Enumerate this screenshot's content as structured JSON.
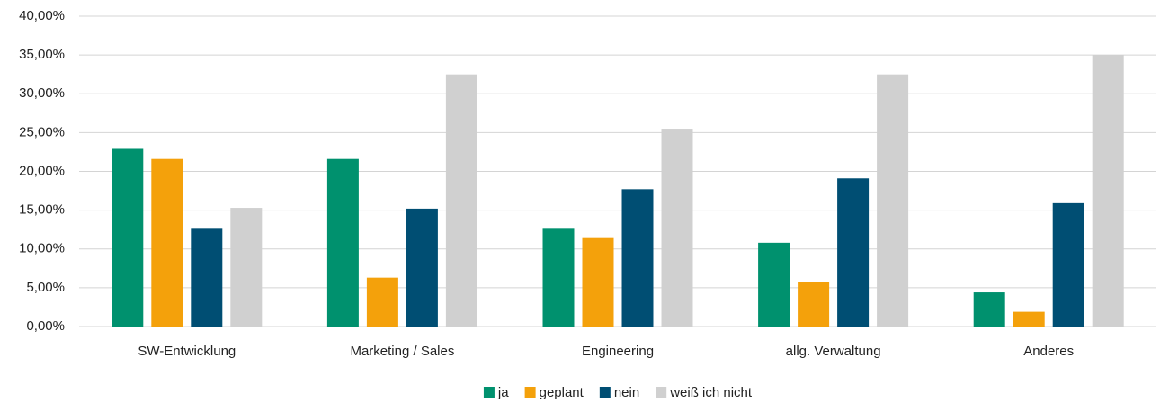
{
  "chart_data": {
    "type": "bar",
    "categories": [
      "SW-Entwicklung",
      "Marketing / Sales",
      "Engineering",
      "allg. Verwaltung",
      "Anderes"
    ],
    "series": [
      {
        "name": "ja",
        "color": "#00916e",
        "values": [
          22.9,
          21.6,
          12.6,
          10.8,
          4.4
        ]
      },
      {
        "name": "geplant",
        "color": "#f4a10b",
        "values": [
          21.6,
          6.3,
          11.4,
          5.7,
          1.9
        ]
      },
      {
        "name": "nein",
        "color": "#004e73",
        "values": [
          12.6,
          15.2,
          17.7,
          19.1,
          15.9
        ]
      },
      {
        "name": "weiß ich nicht",
        "color": "#d0d0d0",
        "values": [
          15.3,
          32.5,
          25.5,
          32.5,
          35.0
        ]
      }
    ],
    "ylim": [
      0,
      40
    ],
    "yticks": [
      {
        "value": 0,
        "label": "0,00%"
      },
      {
        "value": 5,
        "label": "5,00%"
      },
      {
        "value": 10,
        "label": "10,00%"
      },
      {
        "value": 15,
        "label": "15,00%"
      },
      {
        "value": 20,
        "label": "20,00%"
      },
      {
        "value": 25,
        "label": "25,00%"
      },
      {
        "value": 30,
        "label": "30,00%"
      },
      {
        "value": 35,
        "label": "35,00%"
      },
      {
        "value": 40,
        "label": "40,00%"
      }
    ],
    "grid": true,
    "legend": "bottom"
  }
}
